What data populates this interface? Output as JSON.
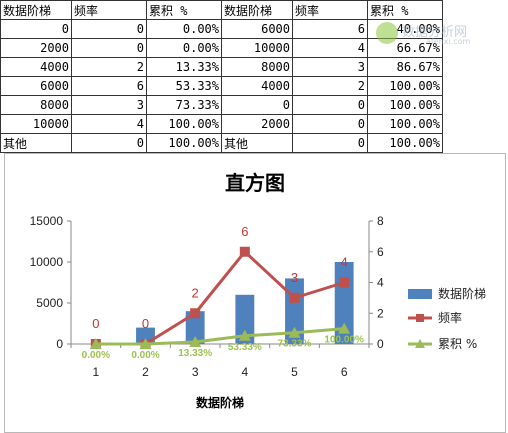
{
  "sheet": {
    "headers": [
      "数据阶梯",
      "频率",
      "累积 %",
      "数据阶梯",
      "频率",
      "累积 %"
    ],
    "rows": [
      [
        "0",
        "0",
        "0.00%",
        "6000",
        "6",
        "40.00%"
      ],
      [
        "2000",
        "0",
        "0.00%",
        "10000",
        "4",
        "66.67%"
      ],
      [
        "4000",
        "2",
        "13.33%",
        "8000",
        "3",
        "86.67%"
      ],
      [
        "6000",
        "6",
        "53.33%",
        "4000",
        "2",
        "100.00%"
      ],
      [
        "8000",
        "3",
        "73.33%",
        "0",
        "0",
        "100.00%"
      ],
      [
        "10000",
        "4",
        "100.00%",
        "2000",
        "0",
        "100.00%"
      ],
      [
        "其他",
        "0",
        "100.00%",
        "其他",
        "0",
        "100.00%"
      ]
    ]
  },
  "watermark": {
    "text": "数据分析网",
    "sub": "afenxi.com"
  },
  "chart_data": {
    "type": "bar",
    "title": "直方图",
    "xlabel": "数据阶梯",
    "categories": [
      "1",
      "2",
      "3",
      "4",
      "5",
      "6"
    ],
    "y_left": {
      "ticks": [
        "0",
        "5000",
        "10000",
        "15000"
      ],
      "range": [
        0,
        15000
      ]
    },
    "y_right": {
      "ticks": [
        "0",
        "2",
        "4",
        "6",
        "8"
      ],
      "range": [
        0,
        8
      ]
    },
    "series": [
      {
        "name": "数据阶梯",
        "kind": "bar",
        "axis": "left",
        "color": "#4f81bd",
        "values": [
          0,
          2000,
          4000,
          6000,
          8000,
          10000
        ]
      },
      {
        "name": "频率",
        "kind": "line",
        "axis": "right",
        "color": "#c0504d",
        "values": [
          0,
          0,
          2,
          6,
          3,
          4
        ],
        "labels": [
          "0",
          "0",
          "2",
          "6",
          "3",
          "4"
        ]
      },
      {
        "name": "累积 %",
        "kind": "line",
        "axis": "right",
        "color": "#9bbb59",
        "values": [
          0,
          0,
          0.1333,
          0.5333,
          0.7333,
          1.0
        ],
        "labels": [
          "0.00%",
          "0.00%",
          "13.33%",
          "53.33%",
          "73.33%",
          "100.00%"
        ]
      }
    ],
    "legend_position": "right"
  }
}
